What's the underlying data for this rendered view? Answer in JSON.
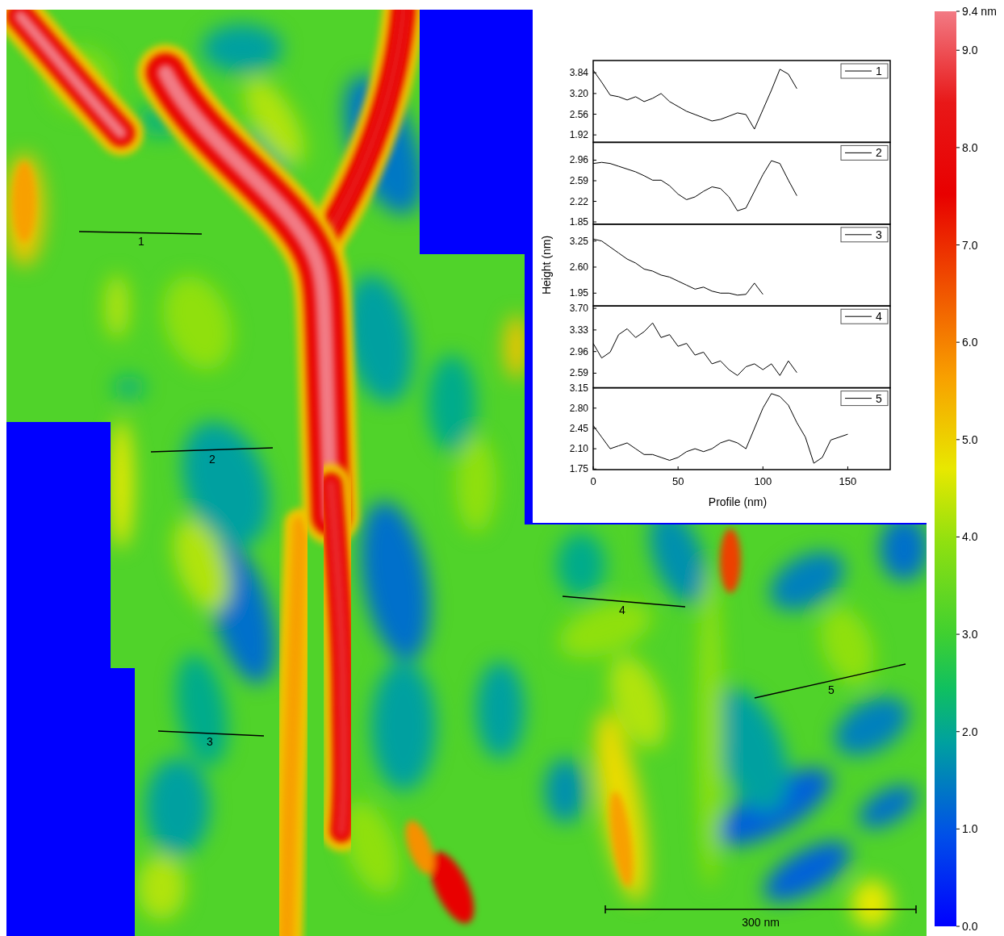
{
  "chart_data": [
    {
      "type": "image",
      "colorbar": {
        "range": [
          0,
          9.4
        ],
        "ticks": [
          {
            "value": 0,
            "label": "0.0"
          },
          {
            "value": 1,
            "label": "1.0"
          },
          {
            "value": 2,
            "label": "2.0"
          },
          {
            "value": 3,
            "label": "3.0"
          },
          {
            "value": 4,
            "label": "4.0"
          },
          {
            "value": 5,
            "label": "5.0"
          },
          {
            "value": 6,
            "label": "6.0"
          },
          {
            "value": 7,
            "label": "7.0"
          },
          {
            "value": 8,
            "label": "8.0"
          },
          {
            "value": 9,
            "label": "9.0"
          },
          {
            "value": 9.4,
            "label": "9.4 nm"
          }
        ]
      },
      "scale_bar": {
        "value": 300,
        "label": "300 nm"
      },
      "profile_labels": [
        "1",
        "2",
        "3",
        "4",
        "5"
      ]
    },
    {
      "type": "line",
      "xlabel": "Profile (nm)",
      "ylabel": "Height (nm)",
      "xlim": [
        0,
        175
      ],
      "xticks": [
        0,
        50,
        100,
        150
      ],
      "legend": "upper right",
      "color": "#000000",
      "series": [
        {
          "name": "1",
          "ylim": [
            1.69,
            4.22
          ],
          "yticks": [
            1.92,
            2.56,
            {
              "value": 3.2,
              "label": "3.20"
            },
            3.84
          ],
          "x": [
            0,
            5,
            10,
            15,
            20,
            25,
            30,
            35,
            40,
            45,
            50,
            55,
            60,
            65,
            70,
            75,
            80,
            85,
            90,
            95,
            100,
            105,
            110,
            115,
            120
          ],
          "values": [
            3.92,
            3.55,
            3.15,
            3.1,
            3.0,
            3.1,
            2.95,
            3.05,
            3.2,
            2.95,
            2.8,
            2.65,
            2.55,
            2.45,
            2.35,
            2.4,
            2.5,
            2.6,
            2.55,
            2.1,
            2.7,
            3.3,
            3.95,
            3.8,
            3.35
          ]
        },
        {
          "name": "2",
          "ylim": [
            1.81,
            3.28
          ],
          "yticks": [
            1.85,
            2.22,
            2.59,
            2.96
          ],
          "x": [
            0,
            5,
            10,
            15,
            20,
            25,
            30,
            35,
            40,
            45,
            50,
            55,
            60,
            65,
            70,
            75,
            80,
            85,
            90,
            95,
            100,
            105,
            110,
            115,
            120
          ],
          "values": [
            2.9,
            2.92,
            2.9,
            2.85,
            2.8,
            2.75,
            2.68,
            2.6,
            2.6,
            2.5,
            2.35,
            2.25,
            2.3,
            2.4,
            2.48,
            2.45,
            2.3,
            2.05,
            2.1,
            2.4,
            2.7,
            2.95,
            2.9,
            2.6,
            2.32
          ]
        },
        {
          "name": "3",
          "ylim": [
            1.63,
            3.67
          ],
          "yticks": [
            1.95,
            {
              "value": 2.6,
              "label": "2.60"
            },
            3.25
          ],
          "x": [
            0,
            5,
            10,
            15,
            20,
            25,
            30,
            35,
            40,
            45,
            50,
            55,
            60,
            65,
            70,
            75,
            80,
            85,
            90,
            95,
            100
          ],
          "values": [
            3.3,
            3.25,
            3.1,
            2.95,
            2.8,
            2.7,
            2.55,
            2.5,
            2.4,
            2.35,
            2.25,
            2.15,
            2.05,
            2.1,
            2.0,
            1.95,
            1.95,
            1.9,
            1.92,
            2.2,
            1.92
          ]
        },
        {
          "name": "4",
          "ylim": [
            2.34,
            3.74
          ],
          "yticks": [
            2.59,
            2.96,
            3.33,
            {
              "value": 3.7,
              "label": "3.70"
            }
          ],
          "x": [
            0,
            5,
            10,
            15,
            20,
            25,
            30,
            35,
            40,
            45,
            50,
            55,
            60,
            65,
            70,
            75,
            80,
            85,
            90,
            95,
            100,
            105,
            110,
            115,
            120
          ],
          "values": [
            3.1,
            2.85,
            2.95,
            3.25,
            3.35,
            3.2,
            3.3,
            3.45,
            3.2,
            3.25,
            3.05,
            3.1,
            2.9,
            2.95,
            2.75,
            2.8,
            2.65,
            2.55,
            2.7,
            2.75,
            2.65,
            2.75,
            2.55,
            2.8,
            2.6
          ]
        },
        {
          "name": "5",
          "ylim": [
            1.74,
            3.15
          ],
          "yticks": [
            1.75,
            {
              "value": 2.1,
              "label": "2.10"
            },
            2.45,
            {
              "value": 2.8,
              "label": "2.80"
            },
            3.15
          ],
          "x": [
            0,
            5,
            10,
            15,
            20,
            25,
            30,
            35,
            40,
            45,
            50,
            55,
            60,
            65,
            70,
            75,
            80,
            85,
            90,
            95,
            100,
            105,
            110,
            115,
            120,
            125,
            130,
            135,
            140,
            145,
            150
          ],
          "values": [
            2.5,
            2.3,
            2.1,
            2.15,
            2.2,
            2.1,
            2.0,
            2.0,
            1.95,
            1.9,
            1.95,
            2.05,
            2.1,
            2.05,
            2.1,
            2.2,
            2.25,
            2.2,
            2.1,
            2.45,
            2.8,
            3.05,
            3.0,
            2.85,
            2.55,
            2.3,
            1.85,
            1.95,
            2.25,
            2.3,
            2.35
          ]
        }
      ]
    }
  ]
}
